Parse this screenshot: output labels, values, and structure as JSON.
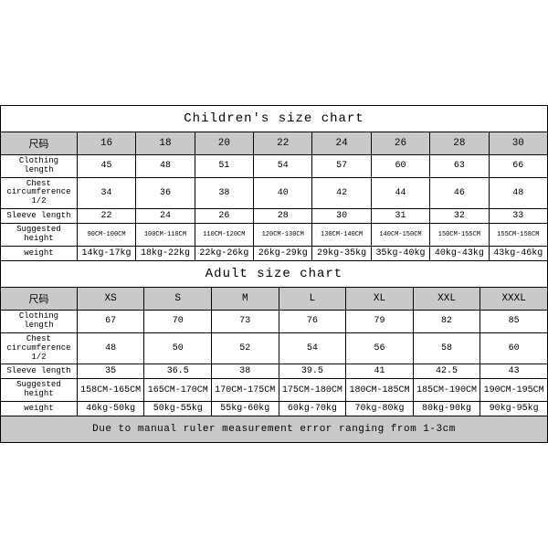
{
  "children": {
    "title": "Children's size chart",
    "col_widths": [
      "14%",
      "10.75%",
      "10.75%",
      "10.75%",
      "10.75%",
      "10.75%",
      "10.75%",
      "10.75%",
      "10.75%"
    ],
    "header": [
      "尺码",
      "16",
      "18",
      "20",
      "22",
      "24",
      "26",
      "28",
      "30"
    ],
    "rows": [
      {
        "label": "Clothing length",
        "cells": [
          "45",
          "48",
          "51",
          "54",
          "57",
          "60",
          "63",
          "66"
        ]
      },
      {
        "label": "Chest circumference 1/2",
        "cells": [
          "34",
          "36",
          "38",
          "40",
          "42",
          "44",
          "46",
          "48"
        ]
      },
      {
        "label": "Sleeve length",
        "cells": [
          "22",
          "24",
          "26",
          "28",
          "30",
          "31",
          "32",
          "33"
        ]
      },
      {
        "label": "Suggested height",
        "cells": [
          "90CM-100CM",
          "100CM-110CM",
          "110CM-120CM",
          "120CM-130CM",
          "130CM-140CM",
          "140CM-150CM",
          "150CM-155CM",
          "155CM-158CM"
        ],
        "small": true
      },
      {
        "label": "weight",
        "cells": [
          "14kg-17kg",
          "18kg-22kg",
          "22kg-26kg",
          "26kg-29kg",
          "29kg-35kg",
          "35kg-40kg",
          "40kg-43kg",
          "43kg-46kg"
        ]
      }
    ]
  },
  "adult": {
    "title": "Adult size chart",
    "col_widths": [
      "14%",
      "12.285%",
      "12.285%",
      "12.285%",
      "12.285%",
      "12.285%",
      "12.285%",
      "12.285%"
    ],
    "header": [
      "尺码",
      "XS",
      "S",
      "M",
      "L",
      "XL",
      "XXL",
      "XXXL"
    ],
    "rows": [
      {
        "label": "Clothing length",
        "cells": [
          "67",
          "70",
          "73",
          "76",
          "79",
          "82",
          "85"
        ]
      },
      {
        "label": "Chest circumference 1/2",
        "cells": [
          "48",
          "50",
          "52",
          "54",
          "56",
          "58",
          "60"
        ]
      },
      {
        "label": "Sleeve length",
        "cells": [
          "35",
          "36.5",
          "38",
          "39.5",
          "41",
          "42.5",
          "43"
        ]
      },
      {
        "label": "Suggested height",
        "cells": [
          "158CM-165CM",
          "165CM-170CM",
          "170CM-175CM",
          "175CM-180CM",
          "180CM-185CM",
          "185CM-190CM",
          "190CM-195CM"
        ],
        "small": false
      },
      {
        "label": "weight",
        "cells": [
          "46kg-50kg",
          "50kg-55kg",
          "55kg-60kg",
          "60kg-70kg",
          "70kg-80kg",
          "80kg-90kg",
          "90kg-95kg"
        ]
      }
    ],
    "note": "Due to manual ruler measurement error ranging from 1-3cm"
  },
  "styling": {
    "border_color": "#000000",
    "header_bg": "#c8c9cb",
    "body_bg": "#ffffff",
    "title_fontsize": 14,
    "header_fontsize": 11,
    "cell_fontsize": 10,
    "label_fontsize": 9,
    "small_fontsize": 7,
    "font_family": "Courier New, monospace"
  }
}
